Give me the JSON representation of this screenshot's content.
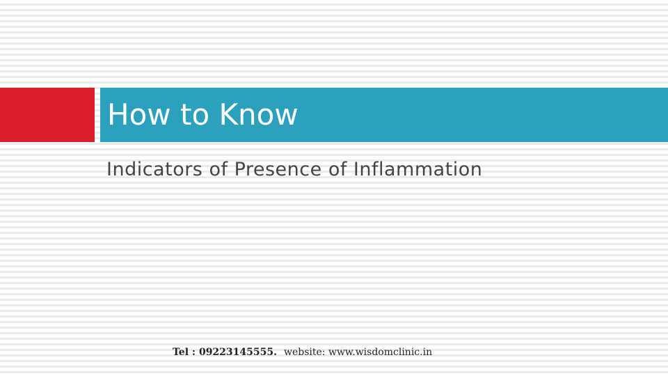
{
  "slide": {
    "title": "How to Know",
    "subtitle": "Indicators of Presence of Inflammation",
    "footer": {
      "tel": "Tel : 09223145555.",
      "website": "website: www.wisdomclinic.in"
    }
  },
  "colors": {
    "accent_red": "#db1f2a",
    "title_bar_blue": "#2ca1be",
    "title_text": "#ffffff",
    "subtitle_text": "#444444",
    "stripe": "#ebebeb"
  }
}
